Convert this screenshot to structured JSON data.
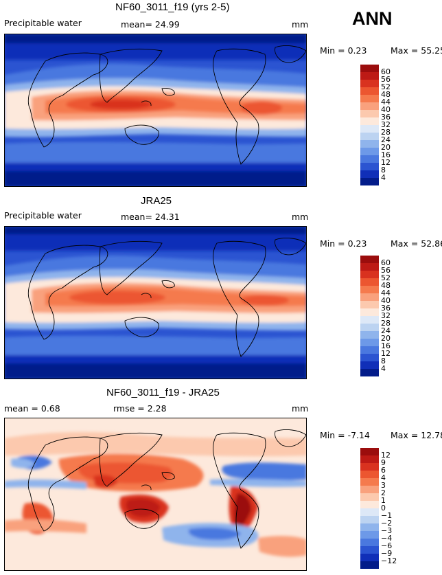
{
  "season": "ANN",
  "panels": [
    {
      "title": "NF60_3011_f19 (yrs 2-5)",
      "left_label": "Precipitable water",
      "stat_text": "mean=  24.99",
      "units": "mm",
      "min_text": "Min =   0.23",
      "max_text": "Max =  55.25",
      "levels": [
        "60",
        "56",
        "52",
        "48",
        "44",
        "40",
        "36",
        "32",
        "28",
        "24",
        "20",
        "16",
        "12",
        "8",
        "4"
      ],
      "colors": [
        "#9b0d0d",
        "#bd1a15",
        "#d9321f",
        "#ec5630",
        "#f57a4d",
        "#f9a17d",
        "#fcc9ae",
        "#fde9dc",
        "#dde8f7",
        "#bcd3f1",
        "#8fb4ec",
        "#6d99e8",
        "#4a78df",
        "#2b54d1",
        "#102fb8",
        "#031c8a"
      ]
    },
    {
      "title": "JRA25",
      "left_label": "Precipitable water",
      "stat_text": "mean=  24.31",
      "units": "mm",
      "min_text": "Min =   0.23",
      "max_text": "Max =  52.86",
      "levels": [
        "60",
        "56",
        "52",
        "48",
        "44",
        "40",
        "36",
        "32",
        "28",
        "24",
        "20",
        "16",
        "12",
        "8",
        "4"
      ],
      "colors": [
        "#9b0d0d",
        "#bd1a15",
        "#d9321f",
        "#ec5630",
        "#f57a4d",
        "#f9a17d",
        "#fcc9ae",
        "#fde9dc",
        "#dde8f7",
        "#bcd3f1",
        "#8fb4ec",
        "#6d99e8",
        "#4a78df",
        "#2b54d1",
        "#102fb8",
        "#031c8a"
      ]
    },
    {
      "title": "NF60_3011_f19 - JRA25",
      "left_label": "mean =   0.68",
      "stat_text": "rmse =   2.28",
      "units": "mm",
      "min_text": "Min =  -7.14",
      "max_text": "Max =  12.78",
      "levels": [
        "12",
        "9",
        "6",
        "4",
        "3",
        "2",
        "1",
        "0",
        "−1",
        "−2",
        "−3",
        "−4",
        "−6",
        "−9",
        "−12"
      ],
      "colors": [
        "#9b0d0d",
        "#bd1a15",
        "#d9321f",
        "#ec5630",
        "#f57a4d",
        "#f9a17d",
        "#fcc9ae",
        "#fde9dc",
        "#dde8f7",
        "#bcd3f1",
        "#8fb4ec",
        "#6d99e8",
        "#4a78df",
        "#2b54d1",
        "#102fb8",
        "#031c8a"
      ]
    }
  ]
}
